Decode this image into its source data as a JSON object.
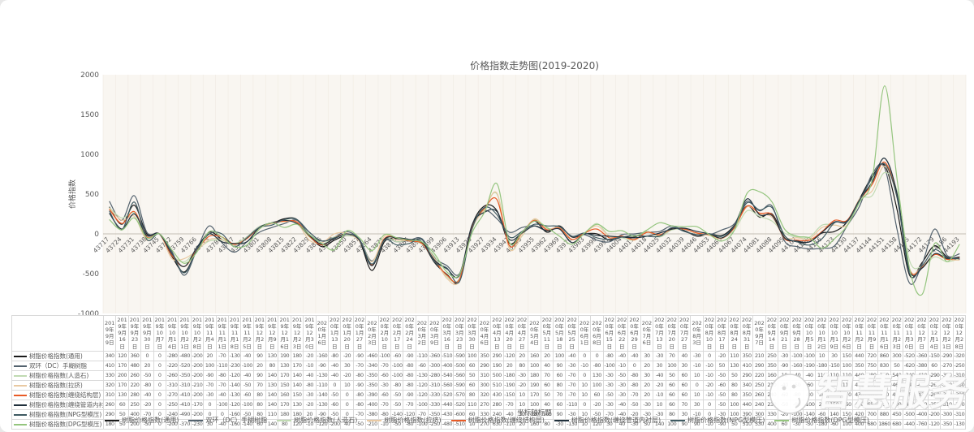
{
  "title": "价格指数走势图(2019-2020)",
  "y_axis": {
    "title": "价格指数",
    "min": -1000,
    "max": 2000,
    "ticks": [
      2000,
      1500,
      1000,
      500,
      0,
      -500,
      -1000
    ]
  },
  "x_axis": {
    "title": "坐标轴标题",
    "serial_start": 43717,
    "serial_step": 7
  },
  "watermark": {
    "text": "智慧服务",
    "logo": "circle-face-logo"
  },
  "chart_data": {
    "type": "line",
    "title": "价格指数走势图(2019-2020)",
    "xlabel": "坐标轴标题",
    "ylabel": "价格指数",
    "ylim": [
      -1000,
      2000
    ],
    "grid": false,
    "legend_position": "bottom",
    "categories": [
      "2019年9月9日",
      "2019年9月16日",
      "2019年9月23日",
      "2019年9月30日",
      "2019年10月7日",
      "2019年10月14日",
      "2019年10月21日",
      "2019年10月28日",
      "2019年11月4日",
      "2019年11月11日",
      "2019年11月18日",
      "2019年11月25日",
      "2019年12月2日",
      "2019年12月9日",
      "2019年12月16日",
      "2019年12月23日",
      "2019年12月30日",
      "2020年1月6日",
      "2020年1月13日",
      "2020年1月20日",
      "2020年1月27日",
      "2020年2月3日",
      "2020年2月10日",
      "2020年2月17日",
      "2020年2月24日",
      "2020年3月2日",
      "2020年3月9日",
      "2020年3月16日",
      "2020年3月23日",
      "2020年3月30日",
      "2020年4月6日",
      "2020年4月13日",
      "2020年4月20日",
      "2020年4月27日",
      "2020年5月4日",
      "2020年5月11日",
      "2020年5月18日",
      "2020年5月25日",
      "2020年6月1日",
      "2020年6月8日",
      "2020年6月15日",
      "2020年6月22日",
      "2020年6月29日",
      "2020年7月6日",
      "2020年7月13日",
      "2020年7月20日",
      "2020年7月27日",
      "2020年8月3日",
      "2020年8月10日",
      "2020年8月17日",
      "2020年8月24日",
      "2020年8月31日",
      "2020年9月7日",
      "2020年9月14日",
      "2020年9月21日",
      "2020年9月28日",
      "2020年10月5日",
      "2020年10月12日",
      "2020年10月19日",
      "2020年10月26日",
      "2020年11月2日",
      "2020年11月9日",
      "2020年11月16日",
      "2020年11月23日",
      "2020年11月30日",
      "2020年12月7日",
      "2020年12月14日",
      "2020年12月21日",
      "2020年12月28日"
    ],
    "series": [
      {
        "name": "树脂价格指数(通用)",
        "color": "#1a1a1a",
        "values": [
          340,
          120,
          360,
          0,
          0,
          -280,
          -480,
          -200,
          20,
          -70,
          -130,
          -40,
          90,
          130,
          190,
          180,
          -20,
          -160,
          -80,
          -20,
          -90,
          -460,
          -100,
          -60,
          -90,
          -110,
          -360,
          -510,
          -590,
          100,
          350,
          290,
          -120,
          20,
          160,
          20,
          100,
          -40,
          0,
          0,
          -80,
          -40,
          -40,
          30,
          -30,
          70,
          40,
          -30,
          0,
          -20,
          110,
          350,
          210,
          250,
          -30,
          -100,
          -100,
          10,
          30,
          150,
          440,
          720,
          860,
          300,
          -520,
          -360,
          -150,
          -290,
          -320
        ]
      },
      {
        "name": "双环（DC）手糊树脂",
        "color": "#53626e",
        "values": [
          410,
          170,
          480,
          20,
          0,
          -220,
          -520,
          -200,
          100,
          -110,
          -230,
          -100,
          20,
          80,
          130,
          170,
          -10,
          -90,
          -40,
          30,
          -70,
          -340,
          -70,
          -100,
          -80,
          -60,
          -300,
          -400,
          -500,
          60,
          290,
          190,
          20,
          80,
          100,
          40,
          90,
          -30,
          -10,
          -80,
          -100,
          -10,
          0,
          20,
          30,
          100,
          30,
          -10,
          -10,
          50,
          130,
          410,
          290,
          350,
          -90,
          -160,
          -190,
          -180,
          -150,
          100,
          350,
          750,
          830,
          50,
          -620,
          -380,
          60,
          -270,
          -250
        ]
      },
      {
        "name": "树脂价格指数(人造石)",
        "color": "#c0dab2",
        "values": [
          330,
          200,
          260,
          -50,
          0,
          -260,
          -350,
          -200,
          -90,
          -80,
          -120,
          -40,
          90,
          140,
          170,
          140,
          -40,
          -130,
          -40,
          -20,
          -80,
          -350,
          -60,
          -100,
          -80,
          -130,
          -280,
          -540,
          -560,
          50,
          310,
          500,
          -180,
          -30,
          180,
          70,
          60,
          -70,
          0,
          130,
          -30,
          -50,
          -80,
          30,
          -40,
          50,
          60,
          10,
          -10,
          -50,
          50,
          290,
          220,
          160,
          10,
          -40,
          -40,
          110,
          110,
          110,
          440,
          480,
          770,
          540,
          -340,
          -410,
          -290,
          -350,
          -310
        ]
      },
      {
        "name": "树脂价格指数(拉挤)",
        "color": "#e9c9a2",
        "values": [
          320,
          170,
          220,
          -80,
          0,
          -310,
          -310,
          -210,
          -70,
          -70,
          -140,
          -50,
          70,
          130,
          150,
          140,
          -80,
          -110,
          0,
          10,
          -90,
          -350,
          -30,
          -80,
          -80,
          -120,
          -310,
          -560,
          -590,
          60,
          300,
          510,
          -190,
          -20,
          190,
          60,
          80,
          -70,
          10,
          100,
          -30,
          -30,
          -80,
          20,
          -20,
          60,
          60,
          0,
          -20,
          -60,
          80,
          340,
          250,
          210,
          -40,
          -50,
          -60,
          80,
          110,
          110,
          440,
          540,
          850,
          460,
          -440,
          -410,
          -260,
          -320,
          -330
        ]
      },
      {
        "name": "树脂价格指数(缠绕结构层)",
        "color": "#e85a25",
        "values": [
          310,
          130,
          280,
          -40,
          0,
          -270,
          -410,
          -200,
          -30,
          -40,
          -130,
          -60,
          80,
          140,
          160,
          150,
          -30,
          -140,
          -50,
          0,
          -80,
          -390,
          -60,
          -50,
          -90,
          -120,
          -330,
          -520,
          -570,
          80,
          320,
          430,
          -150,
          10,
          170,
          50,
          70,
          -70,
          10,
          60,
          -50,
          -30,
          -70,
          20,
          -10,
          60,
          60,
          10,
          -10,
          -50,
          80,
          350,
          260,
          240,
          -60,
          -80,
          -80,
          30,
          170,
          170,
          430,
          620,
          900,
          460,
          -450,
          -420,
          -260,
          -320,
          -300
        ]
      },
      {
        "name": "树脂价格指数(缠绕管道内衬层)",
        "color": "#20303c",
        "values": [
          260,
          60,
          250,
          -20,
          0,
          -250,
          -410,
          -170,
          0,
          -100,
          -120,
          -100,
          80,
          140,
          170,
          130,
          -20,
          -130,
          -60,
          0,
          -80,
          -400,
          -70,
          -50,
          -70,
          -100,
          -330,
          -440,
          -520,
          110,
          270,
          280,
          -70,
          10,
          100,
          40,
          60,
          -110,
          0,
          -20,
          -30,
          -40,
          -50,
          -30,
          10,
          60,
          70,
          30,
          0,
          -50,
          100,
          440,
          240,
          230,
          -50,
          -90,
          -100,
          20,
          150,
          160,
          430,
          650,
          950,
          500,
          -460,
          -430,
          -250,
          -310,
          -290
        ]
      },
      {
        "name": "树脂价格指数(NPG型模压)",
        "color": "#3e5a62",
        "values": [
          290,
          50,
          400,
          -70,
          0,
          -240,
          -490,
          -200,
          0,
          0,
          -160,
          -50,
          80,
          110,
          180,
          180,
          20,
          -90,
          -50,
          0,
          -70,
          -380,
          -80,
          -140,
          -120,
          -70,
          -350,
          -430,
          -600,
          60,
          330,
          240,
          -40,
          30,
          120,
          100,
          90,
          -30,
          10,
          -50,
          -70,
          -40,
          -20,
          -30,
          -30,
          80,
          30,
          -10,
          0,
          -30,
          100,
          390,
          300,
          330,
          -20,
          -100,
          -140,
          -60,
          140,
          150,
          420,
          700,
          880,
          450,
          -500,
          -400,
          -200,
          -300,
          -310
        ]
      },
      {
        "name": "树脂价格指数(DPG型模压)",
        "color": "#94c57e",
        "values": [
          180,
          50,
          200,
          -50,
          0,
          -200,
          -370,
          -230,
          30,
          -40,
          -160,
          -140,
          60,
          140,
          80,
          120,
          -10,
          -120,
          -200,
          40,
          -50,
          -210,
          -10,
          -50,
          -80,
          -100,
          -250,
          -480,
          -510,
          10,
          270,
          630,
          -110,
          20,
          160,
          80,
          -30,
          -130,
          10,
          120,
          30,
          40,
          -30,
          50,
          140,
          100,
          90,
          90,
          -10,
          -90,
          50,
          510,
          530,
          400,
          60,
          -30,
          -50,
          -180,
          -60,
          100,
          400,
          680,
          1860,
          680,
          -440,
          -760,
          -120,
          -350,
          -130
        ]
      }
    ]
  }
}
